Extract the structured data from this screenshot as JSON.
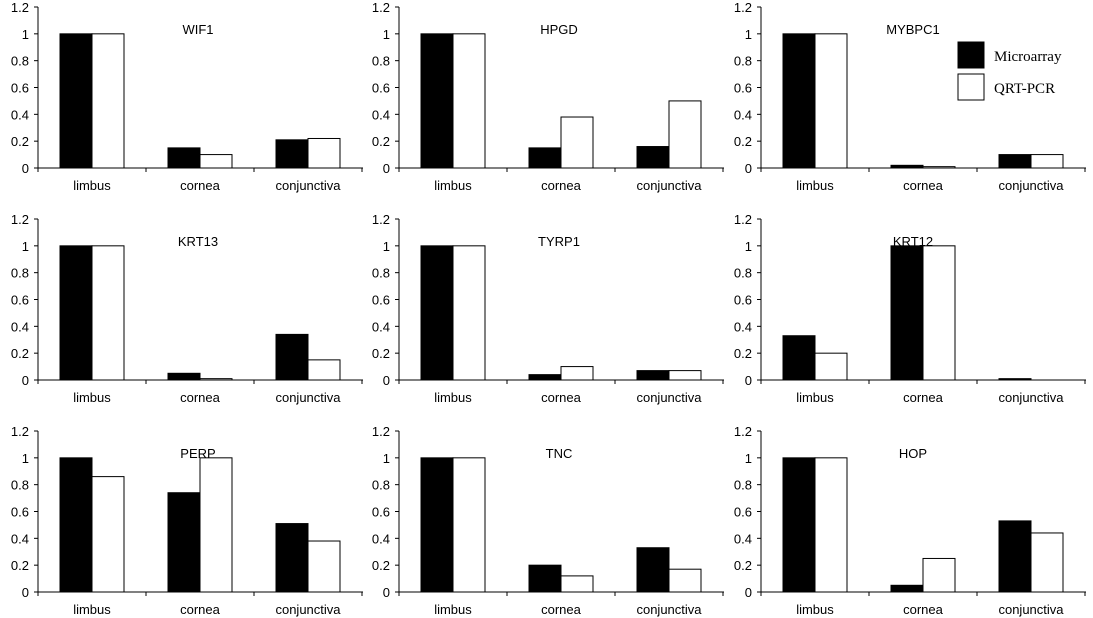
{
  "chart_data": [
    {
      "type": "bar",
      "title": "WIF1",
      "categories": [
        "limbus",
        "cornea",
        "conjunctiva"
      ],
      "ylim": [
        0,
        1.2
      ],
      "yticks": [
        "0",
        "0.2",
        "0.4",
        "0.6",
        "0.8",
        "1",
        "1.2"
      ],
      "series": [
        {
          "name": "Microarray",
          "values": [
            1,
            0.15,
            0.21
          ]
        },
        {
          "name": "QRT-PCR",
          "values": [
            1,
            0.1,
            0.22
          ]
        }
      ]
    },
    {
      "type": "bar",
      "title": "HPGD",
      "categories": [
        "limbus",
        "cornea",
        "conjunctiva"
      ],
      "ylim": [
        0,
        1.2
      ],
      "yticks": [
        "0",
        "0.2",
        "0.4",
        "0.6",
        "0.8",
        "1",
        "1.2"
      ],
      "series": [
        {
          "name": "Microarray",
          "values": [
            1,
            0.15,
            0.16
          ]
        },
        {
          "name": "QRT-PCR",
          "values": [
            1,
            0.38,
            0.5
          ]
        }
      ]
    },
    {
      "type": "bar",
      "title": "MYBPC1",
      "categories": [
        "limbus",
        "cornea",
        "conjunctiva"
      ],
      "ylim": [
        0,
        1.2
      ],
      "yticks": [
        "0",
        "0.2",
        "0.4",
        "0.6",
        "0.8",
        "1",
        "1.2"
      ],
      "legend": "top-right",
      "series": [
        {
          "name": "Microarray",
          "values": [
            1,
            0.02,
            0.1
          ]
        },
        {
          "name": "QRT-PCR",
          "values": [
            1,
            0.01,
            0.1
          ]
        }
      ]
    },
    {
      "type": "bar",
      "title": "KRT13",
      "categories": [
        "limbus",
        "cornea",
        "conjunctiva"
      ],
      "ylim": [
        0,
        1.2
      ],
      "yticks": [
        "0",
        "0.2",
        "0.4",
        "0.6",
        "0.8",
        "1",
        "1.2"
      ],
      "series": [
        {
          "name": "Microarray",
          "values": [
            1,
            0.05,
            0.34
          ]
        },
        {
          "name": "QRT-PCR",
          "values": [
            1,
            0.01,
            0.15
          ]
        }
      ]
    },
    {
      "type": "bar",
      "title": "TYRP1",
      "categories": [
        "limbus",
        "cornea",
        "conjunctiva"
      ],
      "ylim": [
        0,
        1.2
      ],
      "yticks": [
        "0",
        "0.2",
        "0.4",
        "0.6",
        "0.8",
        "1",
        "1.2"
      ],
      "series": [
        {
          "name": "Microarray",
          "values": [
            1,
            0.04,
            0.07
          ]
        },
        {
          "name": "QRT-PCR",
          "values": [
            1,
            0.1,
            0.07
          ]
        }
      ]
    },
    {
      "type": "bar",
      "title": "KRT12",
      "categories": [
        "limbus",
        "cornea",
        "conjunctiva"
      ],
      "ylim": [
        0,
        1.2
      ],
      "yticks": [
        "0",
        "0.2",
        "0.4",
        "0.6",
        "0.8",
        "1",
        "1.2"
      ],
      "series": [
        {
          "name": "Microarray",
          "values": [
            0.33,
            1,
            0.01
          ]
        },
        {
          "name": "QRT-PCR",
          "values": [
            0.2,
            1,
            0
          ]
        }
      ]
    },
    {
      "type": "bar",
      "title": "PERP",
      "categories": [
        "limbus",
        "cornea",
        "conjunctiva"
      ],
      "ylim": [
        0,
        1.2
      ],
      "yticks": [
        "0",
        "0.2",
        "0.4",
        "0.6",
        "0.8",
        "1",
        "1.2"
      ],
      "series": [
        {
          "name": "Microarray",
          "values": [
            1,
            0.74,
            0.51
          ]
        },
        {
          "name": "QRT-PCR",
          "values": [
            0.86,
            1,
            0.38
          ]
        }
      ]
    },
    {
      "type": "bar",
      "title": "TNC",
      "categories": [
        "limbus",
        "cornea",
        "conjunctiva"
      ],
      "ylim": [
        0,
        1.2
      ],
      "yticks": [
        "0",
        "0.2",
        "0.4",
        "0.6",
        "0.8",
        "1",
        "1.2"
      ],
      "series": [
        {
          "name": "Microarray",
          "values": [
            1,
            0.2,
            0.33
          ]
        },
        {
          "name": "QRT-PCR",
          "values": [
            1,
            0.12,
            0.17
          ]
        }
      ]
    },
    {
      "type": "bar",
      "title": "HOP",
      "categories": [
        "limbus",
        "cornea",
        "conjunctiva"
      ],
      "ylim": [
        0,
        1.2
      ],
      "yticks": [
        "0",
        "0.2",
        "0.4",
        "0.6",
        "0.8",
        "1",
        "1.2"
      ],
      "series": [
        {
          "name": "Microarray",
          "values": [
            1,
            0.05,
            0.53
          ]
        },
        {
          "name": "QRT-PCR",
          "values": [
            1,
            0.25,
            0.44
          ]
        }
      ]
    }
  ],
  "legend": {
    "items": [
      {
        "label": "Microarray",
        "color": "#000000"
      },
      {
        "label": "QRT-PCR",
        "color": "#ffffff"
      }
    ]
  }
}
